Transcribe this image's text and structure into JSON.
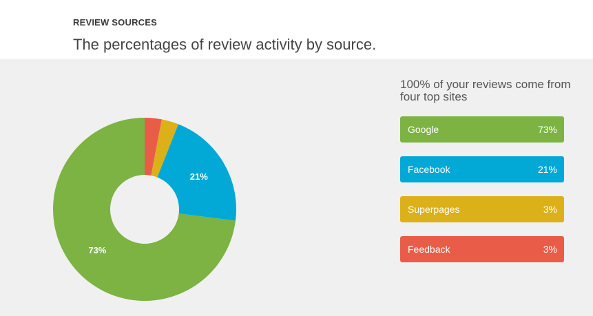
{
  "header": {
    "label": "REVIEW SOURCES",
    "subtitle": "The percentages of review activity by source."
  },
  "summary": "100% of your reviews come from four top sites",
  "legend": [
    {
      "name": "Google",
      "pct": "73%",
      "color": "#7cb342"
    },
    {
      "name": "Facebook",
      "pct": "21%",
      "color": "#03a9d6"
    },
    {
      "name": "Superpages",
      "pct": "3%",
      "color": "#dcb019"
    },
    {
      "name": "Feedback",
      "pct": "3%",
      "color": "#e95d48"
    }
  ],
  "chart_data": {
    "type": "pie",
    "donut": true,
    "categories": [
      "Google",
      "Facebook",
      "Superpages",
      "Feedback"
    ],
    "values": [
      73,
      21,
      3,
      3
    ],
    "data_labels": [
      "73%",
      "21%",
      "",
      ""
    ],
    "colors": [
      "#7cb342",
      "#03a9d6",
      "#dcb019",
      "#e95d48"
    ],
    "title": ""
  }
}
